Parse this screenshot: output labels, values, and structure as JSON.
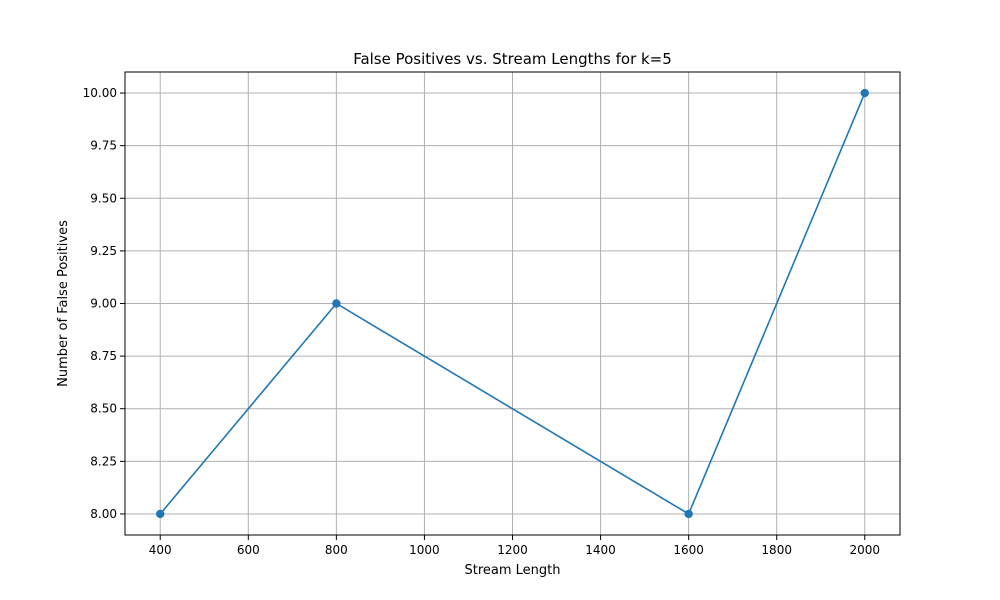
{
  "chart_data": {
    "type": "line",
    "title": "False Positives vs. Stream Lengths for k=5",
    "xlabel": "Stream Length",
    "ylabel": "Number of False Positives",
    "x": [
      400,
      800,
      1600,
      2000
    ],
    "series": [
      {
        "values": [
          8,
          9,
          8,
          10
        ],
        "color": "#1f77b4",
        "marker": "circle"
      }
    ],
    "xlim": [
      320,
      2080
    ],
    "ylim": [
      7.9,
      10.1
    ],
    "xticks": [
      400,
      600,
      800,
      1000,
      1200,
      1400,
      1600,
      1800,
      2000
    ],
    "xtick_labels": [
      "400",
      "600",
      "800",
      "1000",
      "1200",
      "1400",
      "1600",
      "1800",
      "2000"
    ],
    "yticks": [
      8.0,
      8.25,
      8.5,
      8.75,
      9.0,
      9.25,
      9.5,
      9.75,
      10.0
    ],
    "ytick_labels": [
      "8.00",
      "8.25",
      "8.50",
      "8.75",
      "9.00",
      "9.25",
      "9.50",
      "9.75",
      "10.00"
    ],
    "grid": true,
    "legend": "none"
  }
}
